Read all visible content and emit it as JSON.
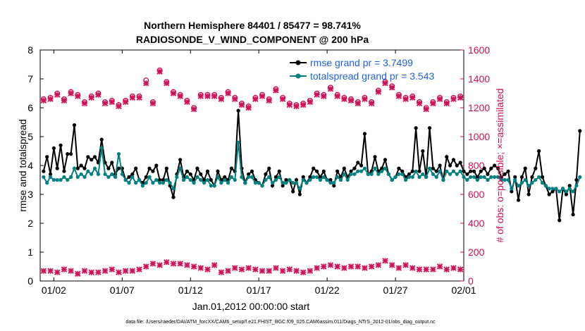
{
  "chart_data": {
    "type": "line",
    "title": "Northern Hemisphere 84401 / 85477 = 98.741%",
    "subtitle": "RADIOSONDE_V_WIND_COMPONENT @ 200 hPa",
    "xlabel": "Jan.01,2012 00:00:00 start",
    "ylabel_left": "rmse and totalspread",
    "ylabel_right": "# of obs: o=possible; ×=assimilated",
    "footnote": "data file: /Users/raeder/DAI/ATM_forcXX/CAM6_setup/f.e21.FHIST_BGC.f09_025.CAM6assim.011/Diags_NTrS_2012-01/obs_diag_output.nc",
    "xlim": [
      0,
      31
    ],
    "ylim_left": [
      0,
      8
    ],
    "ylim_right": [
      0,
      1600
    ],
    "x_ticks": [
      {
        "label": "01/02",
        "value": 1
      },
      {
        "label": "01/07",
        "value": 6
      },
      {
        "label": "01/12",
        "value": 11
      },
      {
        "label": "01/17",
        "value": 16
      },
      {
        "label": "01/22",
        "value": 21
      },
      {
        "label": "01/27",
        "value": 26
      },
      {
        "label": "02/01",
        "value": 31
      }
    ],
    "left_ticks": [
      0,
      1,
      2,
      3,
      4,
      5,
      6,
      7,
      8
    ],
    "right_ticks": [
      0,
      200,
      400,
      600,
      800,
      1000,
      1200,
      1400,
      1600
    ],
    "colors": {
      "rmse": "#000000",
      "spread": "#008080",
      "obs": "#d0105a",
      "legend_text": "#1f5fe0"
    },
    "legend": [
      {
        "name": "rmse grand pr = 3.7499",
        "series": "rmse"
      },
      {
        "name": "totalspread grand pr = 3.543",
        "series": "spread"
      }
    ],
    "series": [
      {
        "name": "rmse",
        "axis": "left",
        "x_start": 0.25,
        "x_step": 0.25,
        "values": [
          3.8,
          4.3,
          3.7,
          4.6,
          3.9,
          4.7,
          3.8,
          4.4,
          4.4,
          5.4,
          3.9,
          4.0,
          3.9,
          4.3,
          4.2,
          4.3,
          4.1,
          4.9,
          4.1,
          3.9,
          4.1,
          3.7,
          3.9,
          3.9,
          3.5,
          3.6,
          3.7,
          3.9,
          3.5,
          3.4,
          3.6,
          3.9,
          3.8,
          4.0,
          3.5,
          3.5,
          3.9,
          3.3,
          2.9,
          3.7,
          4.2,
          3.6,
          3.8,
          3.7,
          3.5,
          3.9,
          3.7,
          3.5,
          3.8,
          3.5,
          3.3,
          3.8,
          3.5,
          3.6,
          3.5,
          3.9,
          3.8,
          5.9,
          3.9,
          3.4,
          3.7,
          3.8,
          3.5,
          3.4,
          3.3,
          3.7,
          3.9,
          3.3,
          3.6,
          3.8,
          3.3,
          3.5,
          3.5,
          3.1,
          3.5,
          3.0,
          3.6,
          3.4,
          3.6,
          3.9,
          3.8,
          3.6,
          3.8,
          3.5,
          3.5,
          3.3,
          3.8,
          3.6,
          3.9,
          3.6,
          3.8,
          3.9,
          4.1,
          4.0,
          5.1,
          3.7,
          3.8,
          4.3,
          3.8,
          3.9,
          4.2,
          3.7,
          3.5,
          3.6,
          3.9,
          3.8,
          3.6,
          3.7,
          3.8,
          5.3,
          3.8,
          4.5,
          3.6,
          5.3,
          3.9,
          3.8,
          4.0,
          3.5,
          4.3,
          4.0,
          4.2,
          4.0,
          4.1,
          3.8,
          3.7,
          3.8,
          3.8,
          3.6,
          3.8,
          3.9,
          3.7,
          3.9,
          4.0,
          3.9,
          3.6,
          3.7,
          3.8,
          3.1,
          3.6,
          2.8,
          3.6,
          3.9,
          3.0,
          3.6,
          3.9,
          4.5,
          3.6,
          3.3,
          3.0,
          3.1,
          3.2,
          2.1,
          3.2,
          3.0,
          3.3,
          2.3,
          3.5,
          5.2
        ]
      },
      {
        "name": "totalspread",
        "axis": "left",
        "x_start": 0.25,
        "x_step": 0.25,
        "values": [
          3.6,
          3.4,
          3.6,
          3.5,
          3.5,
          3.5,
          3.6,
          3.5,
          3.6,
          3.9,
          3.6,
          3.7,
          3.6,
          3.8,
          3.7,
          3.9,
          3.7,
          4.6,
          3.7,
          3.6,
          3.7,
          3.6,
          4.4,
          3.7,
          3.5,
          3.4,
          3.6,
          3.4,
          3.5,
          3.3,
          3.4,
          3.6,
          3.4,
          3.5,
          3.4,
          3.4,
          3.5,
          3.4,
          3.2,
          3.6,
          3.9,
          3.5,
          3.6,
          3.5,
          3.4,
          3.6,
          3.5,
          3.4,
          3.5,
          3.3,
          3.3,
          3.6,
          3.4,
          3.5,
          3.4,
          3.6,
          3.5,
          4.8,
          3.6,
          3.4,
          3.6,
          3.6,
          3.4,
          3.4,
          3.3,
          3.5,
          3.6,
          3.4,
          3.5,
          3.6,
          3.4,
          3.4,
          3.5,
          3.4,
          3.4,
          3.2,
          3.5,
          3.4,
          3.5,
          3.6,
          3.6,
          3.5,
          3.6,
          3.5,
          3.4,
          3.4,
          3.6,
          3.5,
          3.7,
          3.5,
          3.7,
          3.7,
          3.8,
          3.8,
          3.9,
          3.7,
          3.7,
          3.9,
          3.7,
          3.8,
          3.9,
          3.7,
          3.5,
          3.6,
          3.7,
          3.7,
          3.5,
          3.6,
          3.6,
          3.8,
          3.6,
          3.7,
          3.6,
          3.9,
          3.7,
          3.6,
          3.8,
          3.5,
          3.8,
          3.7,
          3.8,
          3.7,
          3.8,
          3.6,
          3.5,
          3.6,
          3.6,
          3.5,
          3.6,
          3.6,
          3.5,
          3.6,
          3.6,
          3.6,
          3.5,
          3.5,
          3.5,
          3.2,
          3.5,
          3.3,
          3.4,
          3.5,
          3.3,
          3.4,
          3.5,
          3.6,
          3.4,
          3.3,
          3.2,
          3.2,
          3.2,
          3.1,
          3.2,
          3.1,
          3.2,
          3.1,
          3.3,
          3.6
        ]
      },
      {
        "name": "obs possible",
        "axis": "right",
        "marker": "circle",
        "x_start": 0.25,
        "x_step": 0.5,
        "values": [
          1260,
          1270,
          1300,
          1260,
          1310,
          1290,
          1240,
          1280,
          1300,
          1240,
          1250,
          1220,
          1250,
          1280,
          1280,
          1390,
          1240,
          1460,
          1380,
          1310,
          1290,
          1250,
          1200,
          1290,
          1290,
          1290,
          1270,
          1310,
          1270,
          1230,
          1210,
          1270,
          1290,
          1260,
          1330,
          1270,
          1230,
          1220,
          1230,
          1250,
          1300,
          1290,
          1340,
          1290,
          1270,
          1260,
          1240,
          1270,
          1240,
          1320,
          1380,
          1350,
          1290,
          1270,
          1280,
          1240,
          1200,
          1240,
          1270,
          1240,
          1270,
          1280
        ]
      },
      {
        "name": "obs assimilated",
        "axis": "right",
        "marker": "x",
        "x_start": 0.25,
        "x_step": 0.5,
        "values": [
          1250,
          1260,
          1290,
          1250,
          1300,
          1280,
          1230,
          1270,
          1290,
          1230,
          1240,
          1210,
          1240,
          1270,
          1270,
          1370,
          1230,
          1450,
          1370,
          1300,
          1280,
          1240,
          1190,
          1280,
          1280,
          1280,
          1260,
          1300,
          1260,
          1220,
          1200,
          1260,
          1280,
          1250,
          1320,
          1260,
          1220,
          1210,
          1220,
          1240,
          1290,
          1280,
          1330,
          1280,
          1260,
          1250,
          1230,
          1260,
          1230,
          1310,
          1370,
          1340,
          1280,
          1260,
          1270,
          1230,
          1190,
          1230,
          1260,
          1230,
          1260,
          1270
        ]
      },
      {
        "name": "obs count (bottom)",
        "axis": "right",
        "marker": "x",
        "x_start": 0.25,
        "x_step": 0.5,
        "values": [
          70,
          70,
          60,
          80,
          70,
          50,
          70,
          60,
          60,
          70,
          80,
          60,
          70,
          70,
          80,
          100,
          120,
          110,
          130,
          120,
          120,
          110,
          100,
          90,
          80,
          110,
          60,
          70,
          90,
          80,
          90,
          80,
          70,
          70,
          90,
          70,
          80,
          70,
          60,
          70,
          90,
          100,
          110,
          100,
          90,
          100,
          100,
          90,
          100,
          110,
          140,
          110,
          90,
          110,
          90,
          80,
          80,
          80,
          100,
          80,
          90,
          80
        ]
      }
    ]
  }
}
